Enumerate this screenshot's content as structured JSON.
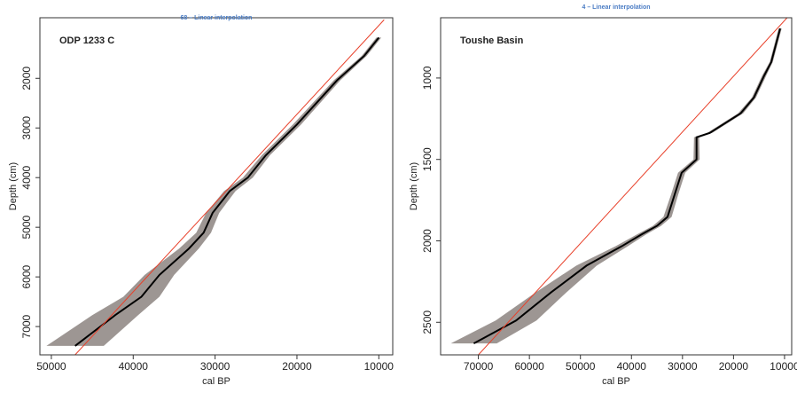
{
  "chart_data": [
    {
      "type": "line",
      "title": "ODP 1233 C",
      "subtitle": "68 – Linear interpolation",
      "x_label": "cal BP",
      "y_label": "Depth (cm)",
      "xlim": [
        51400,
        8300
      ],
      "ylim": [
        7570,
        780
      ],
      "xticks": [
        50000,
        40000,
        30000,
        20000,
        10000
      ],
      "yticks": [
        2000,
        3000,
        4000,
        5000,
        6000,
        7000
      ],
      "envelope": {
        "color": "#8c8480",
        "y": [
          1180,
          1550,
          2040,
          2930,
          3550,
          4000,
          4270,
          4710,
          5110,
          5430,
          5960,
          6400,
          6770,
          7390
        ],
        "x_low": [
          9700,
          11500,
          14700,
          19500,
          23300,
          25400,
          27500,
          29500,
          30500,
          32000,
          35000,
          36800,
          39400,
          43600
        ],
        "x_high": [
          10300,
          12100,
          15500,
          20500,
          24300,
          26600,
          28900,
          31100,
          32300,
          34400,
          38600,
          41200,
          45000,
          50600
        ]
      },
      "series": [
        {
          "color": "#000000",
          "x": [
            10000,
            11800,
            15100,
            20000,
            23800,
            26000,
            28200,
            30300,
            31400,
            33200,
            36800,
            39000,
            42200,
            47100
          ],
          "values": [
            1180,
            1550,
            2040,
            2930,
            3550,
            4000,
            4270,
            4710,
            5110,
            5430,
            5960,
            6400,
            6770,
            7390
          ]
        },
        {
          "color": "#e8402a",
          "x": [
            9350,
            47100
          ],
          "values": [
            820,
            7570
          ]
        }
      ]
    },
    {
      "type": "line",
      "title": "Toushe Basin",
      "subtitle": "4 – Linear interpolation",
      "x_label": "cal BP",
      "y_label": "Depth (cm)",
      "xlim": [
        77400,
        8600
      ],
      "ylim": [
        2700,
        630
      ],
      "xticks": [
        70000,
        60000,
        50000,
        40000,
        30000,
        20000,
        10000
      ],
      "yticks": [
        1000,
        1500,
        2000,
        2500
      ],
      "envelope": {
        "color": "#8c8480",
        "y": [
          696,
          902,
          984,
          1120,
          1217,
          1337,
          1364,
          1500,
          1582,
          1717,
          1853,
          1908,
          1962,
          2033,
          2152,
          2315,
          2489,
          2630
        ],
        "x_low": [
          10560,
          12300,
          13570,
          15600,
          18100,
          24150,
          26740,
          26640,
          29470,
          30850,
          32130,
          34200,
          37200,
          40700,
          46800,
          52700,
          58600,
          66400
        ],
        "x_high": [
          11160,
          12900,
          14370,
          16400,
          19100,
          25150,
          27740,
          27840,
          30870,
          32250,
          33730,
          35800,
          39000,
          43100,
          50800,
          58700,
          66600,
          75400
        ]
      },
      "series": [
        {
          "color": "#000000",
          "x": [
            10860,
            12600,
            13970,
            16000,
            18600,
            24650,
            27240,
            27240,
            30170,
            31550,
            32930,
            35000,
            38100,
            41900,
            48800,
            55700,
            62600,
            70900
          ],
          "values": [
            696,
            902,
            984,
            1120,
            1217,
            1337,
            1364,
            1500,
            1582,
            1717,
            1853,
            1908,
            1962,
            2033,
            2152,
            2315,
            2489,
            2630
          ]
        },
        {
          "color": "#e8402a",
          "x": [
            9500,
            70000
          ],
          "values": [
            630,
            2700
          ]
        }
      ]
    }
  ]
}
